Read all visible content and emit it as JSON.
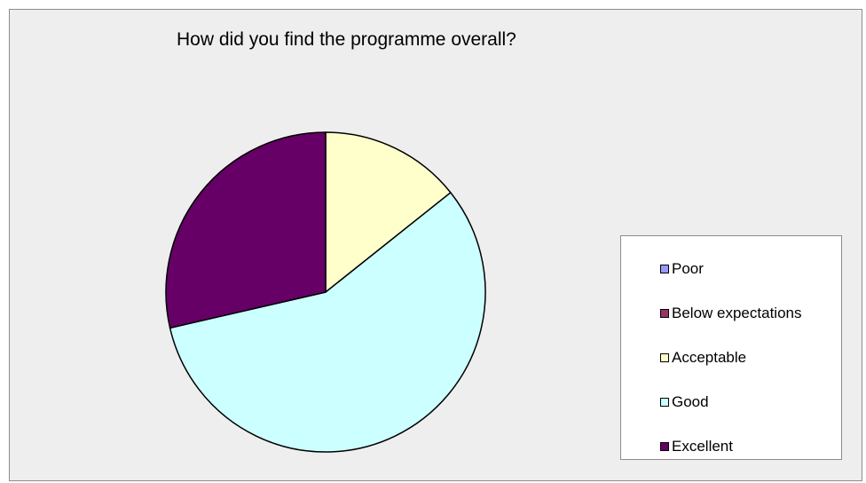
{
  "chart_data": {
    "type": "pie",
    "title": "How did you find the programme overall?",
    "categories": [
      "Poor",
      "Below expectations",
      "Acceptable",
      "Good",
      "Excellent"
    ],
    "values": [
      0,
      0,
      14.3,
      57.1,
      28.6
    ],
    "colors": [
      "#9999ff",
      "#993366",
      "#ffffcc",
      "#ccffff",
      "#660066"
    ],
    "legend_position": "right"
  }
}
